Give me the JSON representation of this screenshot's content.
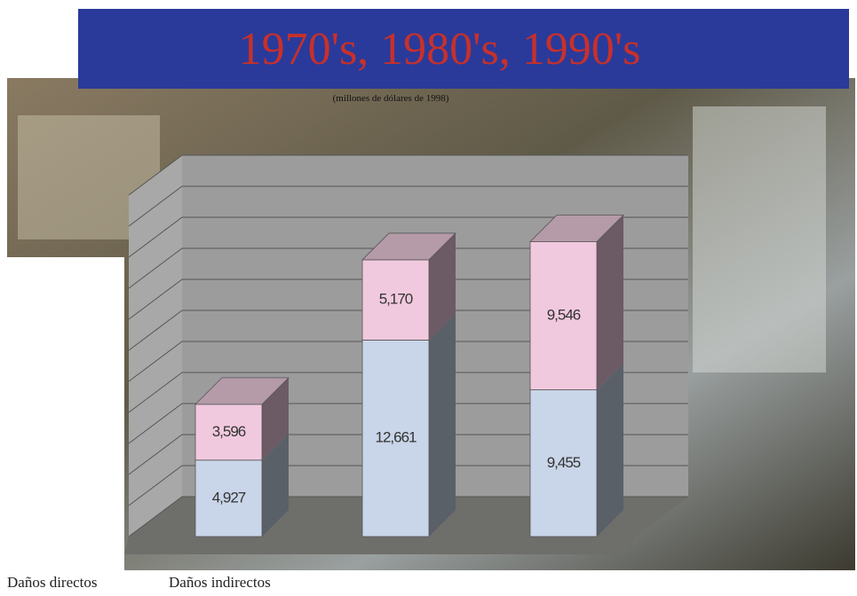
{
  "chart_data": {
    "type": "bar3d_stacked",
    "title": "1970's, 1980's, 1990's",
    "subtitle": "(millones de dólares de 1998)",
    "categories": [
      null,
      null,
      null
    ],
    "series": [
      {
        "name": "Daños directos",
        "color": "#c9d5e8",
        "values": [
          4927,
          12661,
          9455
        ],
        "value_labels": [
          "4,927",
          "12,661",
          "9,455"
        ]
      },
      {
        "name": "Daños indirectos",
        "color": "#f1c9de",
        "values": [
          3596,
          5170,
          9546
        ],
        "value_labels": [
          "3,596",
          "5,170",
          "9,546"
        ]
      }
    ],
    "ylim": [
      0,
      22000
    ],
    "yticks": [
      0,
      2000,
      4000,
      6000,
      8000,
      10000,
      12000,
      14000,
      16000,
      18000,
      20000,
      22000
    ],
    "grid": true
  }
}
